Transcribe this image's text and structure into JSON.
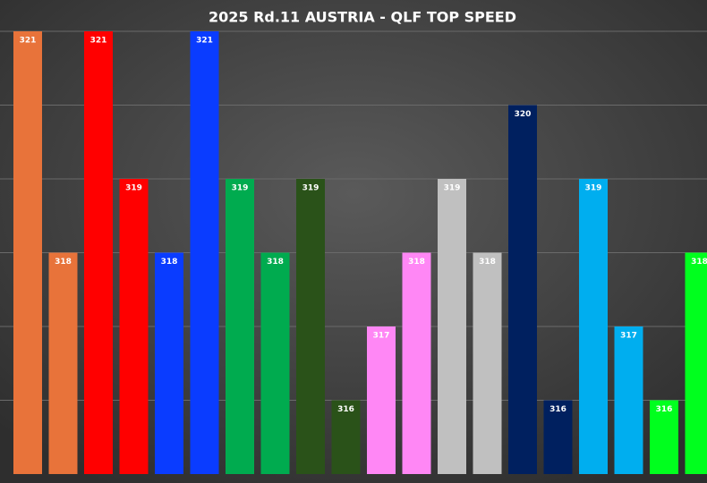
{
  "chart_data": {
    "type": "bar",
    "title": "2025 Rd.11 AUSTRIA - QLF TOP SPEED",
    "values": [
      321,
      318,
      321,
      319,
      318,
      321,
      319,
      318,
      319,
      316,
      317,
      318,
      319,
      318,
      320,
      316,
      319,
      317,
      316,
      318
    ],
    "colors": [
      "#e8733a",
      "#e8733a",
      "#ff0000",
      "#ff0000",
      "#0a3cff",
      "#0a3cff",
      "#00ab4f",
      "#00ab4f",
      "#2a5219",
      "#2a5219",
      "#ff87f5",
      "#ff87f5",
      "#c0c0c0",
      "#c0c0c0",
      "#00205f",
      "#00205f",
      "#00aeef",
      "#00aeef",
      "#00ff1e",
      "#00ff1e"
    ],
    "ylim": [
      315,
      321
    ],
    "yticks": [
      316,
      317,
      318,
      319,
      320,
      321
    ],
    "grid": true
  }
}
